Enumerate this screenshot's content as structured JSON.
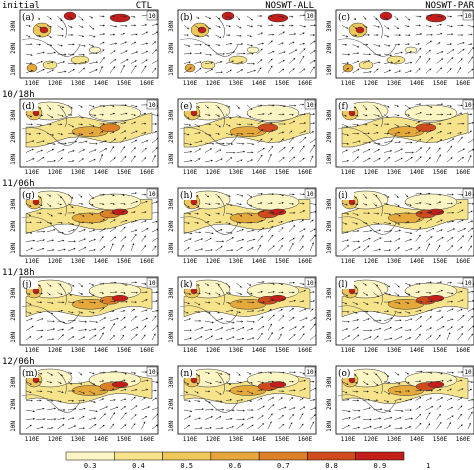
{
  "column_titles": [
    "CTL",
    "NOSWT-ALL",
    "NOSWT-PAR"
  ],
  "row_labels": [
    "initial",
    "10/18h",
    "11/06h",
    "11/18h",
    "12/06h"
  ],
  "panel_letters": [
    "(a)",
    "(b)",
    "(c)",
    "(d)",
    "(e)",
    "(f)",
    "(g)",
    "(h)",
    "(i)",
    "(j)",
    "(k)",
    "(l)",
    "(m)",
    "(n)",
    "(o)"
  ],
  "lon_ticks": [
    "110E",
    "120E",
    "130E",
    "140E",
    "150E",
    "160E"
  ],
  "lat_ticks": [
    "10N",
    "20N",
    "30N"
  ],
  "vector_ref": "10",
  "colorbar": {
    "labels": [
      "0.3",
      "0.4",
      "0.5",
      "0.6",
      "0.7",
      "0.8",
      "0.9",
      "1"
    ],
    "colors": [
      "#fdf6c4",
      "#f6e38a",
      "#eec85a",
      "#e5a83a",
      "#dd8026",
      "#cf4a1c",
      "#c41e1a"
    ]
  },
  "shading_stage": [
    0,
    1,
    2,
    3,
    4
  ]
}
